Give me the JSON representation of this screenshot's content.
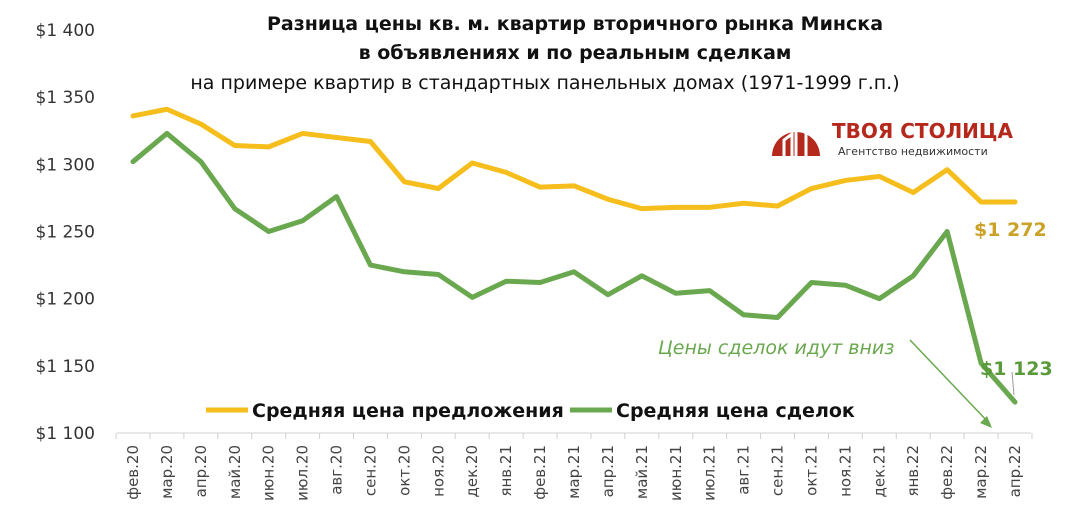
{
  "chart_data": {
    "type": "line",
    "title": "Разница цены кв. м. квартир вторичного рынка Минска",
    "title_line2": "в объявлениях и по реальным сделкам",
    "subtitle": "на примере квартир в стандартных панельных домах (1971-1999 г.п.)",
    "xlabel": "",
    "ylabel": "",
    "ylim": [
      1100,
      1400
    ],
    "yticks": [
      1100,
      1150,
      1200,
      1250,
      1300,
      1350,
      1400
    ],
    "ytick_labels": [
      "$1 100",
      "$1 150",
      "$1 200",
      "$1 250",
      "$1 300",
      "$1 350",
      "$1 400"
    ],
    "grid": false,
    "legend_position": "bottom",
    "categories": [
      "фев.20",
      "мар.20",
      "апр.20",
      "май.20",
      "июн.20",
      "июл.20",
      "авг.20",
      "сен.20",
      "окт.20",
      "ноя.20",
      "дек.20",
      "янв.21",
      "фев.21",
      "мар.21",
      "апр.21",
      "май.21",
      "июн.21",
      "июл.21",
      "авг.21",
      "сен.21",
      "окт.21",
      "ноя.21",
      "дек.21",
      "янв.22",
      "фев.22",
      "мар.22",
      "апр.22"
    ],
    "series": [
      {
        "name": "Средняя цена предложения",
        "color": "#F5BE1C",
        "values": [
          1336,
          1341,
          1330,
          1314,
          1313,
          1323,
          1320,
          1317,
          1287,
          1282,
          1301,
          1294,
          1283,
          1284,
          1274,
          1267,
          1268,
          1268,
          1271,
          1269,
          1282,
          1288,
          1291,
          1279,
          1296,
          1272,
          1272
        ],
        "end_label": "$1 272",
        "label_color": "#C9A227"
      },
      {
        "name": "Средняя цена сделок",
        "color": "#6AA84F",
        "values": [
          1302,
          1323,
          1302,
          1267,
          1250,
          1258,
          1276,
          1225,
          1220,
          1218,
          1201,
          1213,
          1212,
          1220,
          1203,
          1217,
          1204,
          1206,
          1188,
          1186,
          1212,
          1210,
          1200,
          1217,
          1250,
          1152,
          1123
        ],
        "end_label": "$1 123",
        "label_color": "#5B9A3A"
      }
    ],
    "annotation": "Цены сделок идут вниз"
  },
  "logo": {
    "name": "ТВОЯ СТОЛИЦА",
    "sub": "Агентство недвижимости",
    "color": "#B5281C"
  }
}
